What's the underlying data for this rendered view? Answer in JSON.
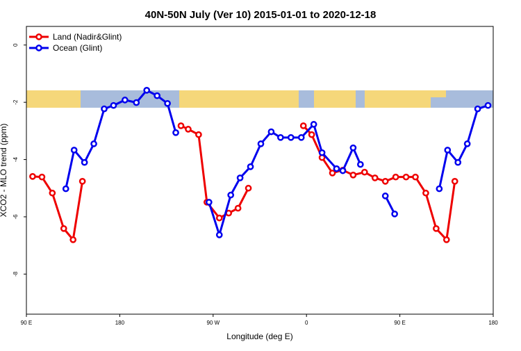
{
  "chart_data": {
    "type": "line",
    "title": "40N-50N July (Ver 10)   2015-01-01 to 2020-12-18",
    "x_label": "Longitude (deg E)",
    "y_label": "XCO2 - MLO trend (ppm)",
    "xlim": [
      90,
      540
    ],
    "ylim": [
      -9.4,
      0.65
    ],
    "xticks": [
      {
        "value": 90,
        "label": "90 E"
      },
      180,
      {
        "value": 270,
        "label": "90 W"
      },
      {
        "value": 360,
        "label": "0"
      },
      {
        "value": 450,
        "label": "90 E"
      },
      {
        "value": 540,
        "label": "180"
      }
    ],
    "yticks": [
      0,
      -2,
      -4,
      -6,
      -8
    ],
    "legend": "top-left",
    "series": [
      {
        "name": "Land (Nadir&Glint)",
        "color": "#ee0000",
        "x": [
          96,
          105,
          115,
          126,
          135,
          144,
          null,
          239,
          246,
          256,
          264,
          276,
          285,
          294,
          304,
          null,
          357,
          365,
          375,
          385,
          395,
          405,
          416,
          426,
          436,
          446,
          456,
          465,
          475,
          485,
          495,
          503
        ],
        "values": [
          -4.59,
          -4.61,
          -5.17,
          -6.41,
          -6.8,
          -4.76,
          null,
          -2.82,
          -2.94,
          -3.13,
          -5.49,
          -6.04,
          -5.87,
          -5.7,
          -5.0,
          null,
          -2.82,
          -3.13,
          -3.93,
          -4.47,
          -4.37,
          -4.54,
          -4.44,
          -4.64,
          -4.76,
          -4.61,
          -4.61,
          -4.61,
          -5.17,
          -6.41,
          -6.8,
          -4.76
        ]
      },
      {
        "name": "Ocean (Glint)",
        "color": "#0000ee",
        "x": [
          128,
          136,
          146,
          155,
          165,
          174,
          185,
          196,
          206,
          216,
          226,
          234,
          null,
          266,
          276,
          287,
          296,
          306,
          316,
          326,
          335,
          345,
          355,
          367,
          375,
          389,
          395,
          405,
          412,
          null,
          436,
          445,
          null,
          488,
          496,
          506,
          515,
          525,
          535
        ],
        "values": [
          -5.02,
          -3.67,
          -4.1,
          -3.45,
          -2.23,
          -2.11,
          -1.92,
          -2.01,
          -1.58,
          -1.77,
          -2.04,
          -3.06,
          null,
          -5.49,
          -6.63,
          -5.24,
          -4.64,
          -4.25,
          -3.45,
          -3.03,
          -3.23,
          -3.23,
          -3.23,
          -2.77,
          -3.76,
          -4.32,
          -4.39,
          -3.59,
          -4.17,
          null,
          -5.27,
          -5.9,
          null,
          -5.02,
          -3.67,
          -4.1,
          -3.45,
          -2.23,
          -2.11
        ]
      }
    ]
  }
}
